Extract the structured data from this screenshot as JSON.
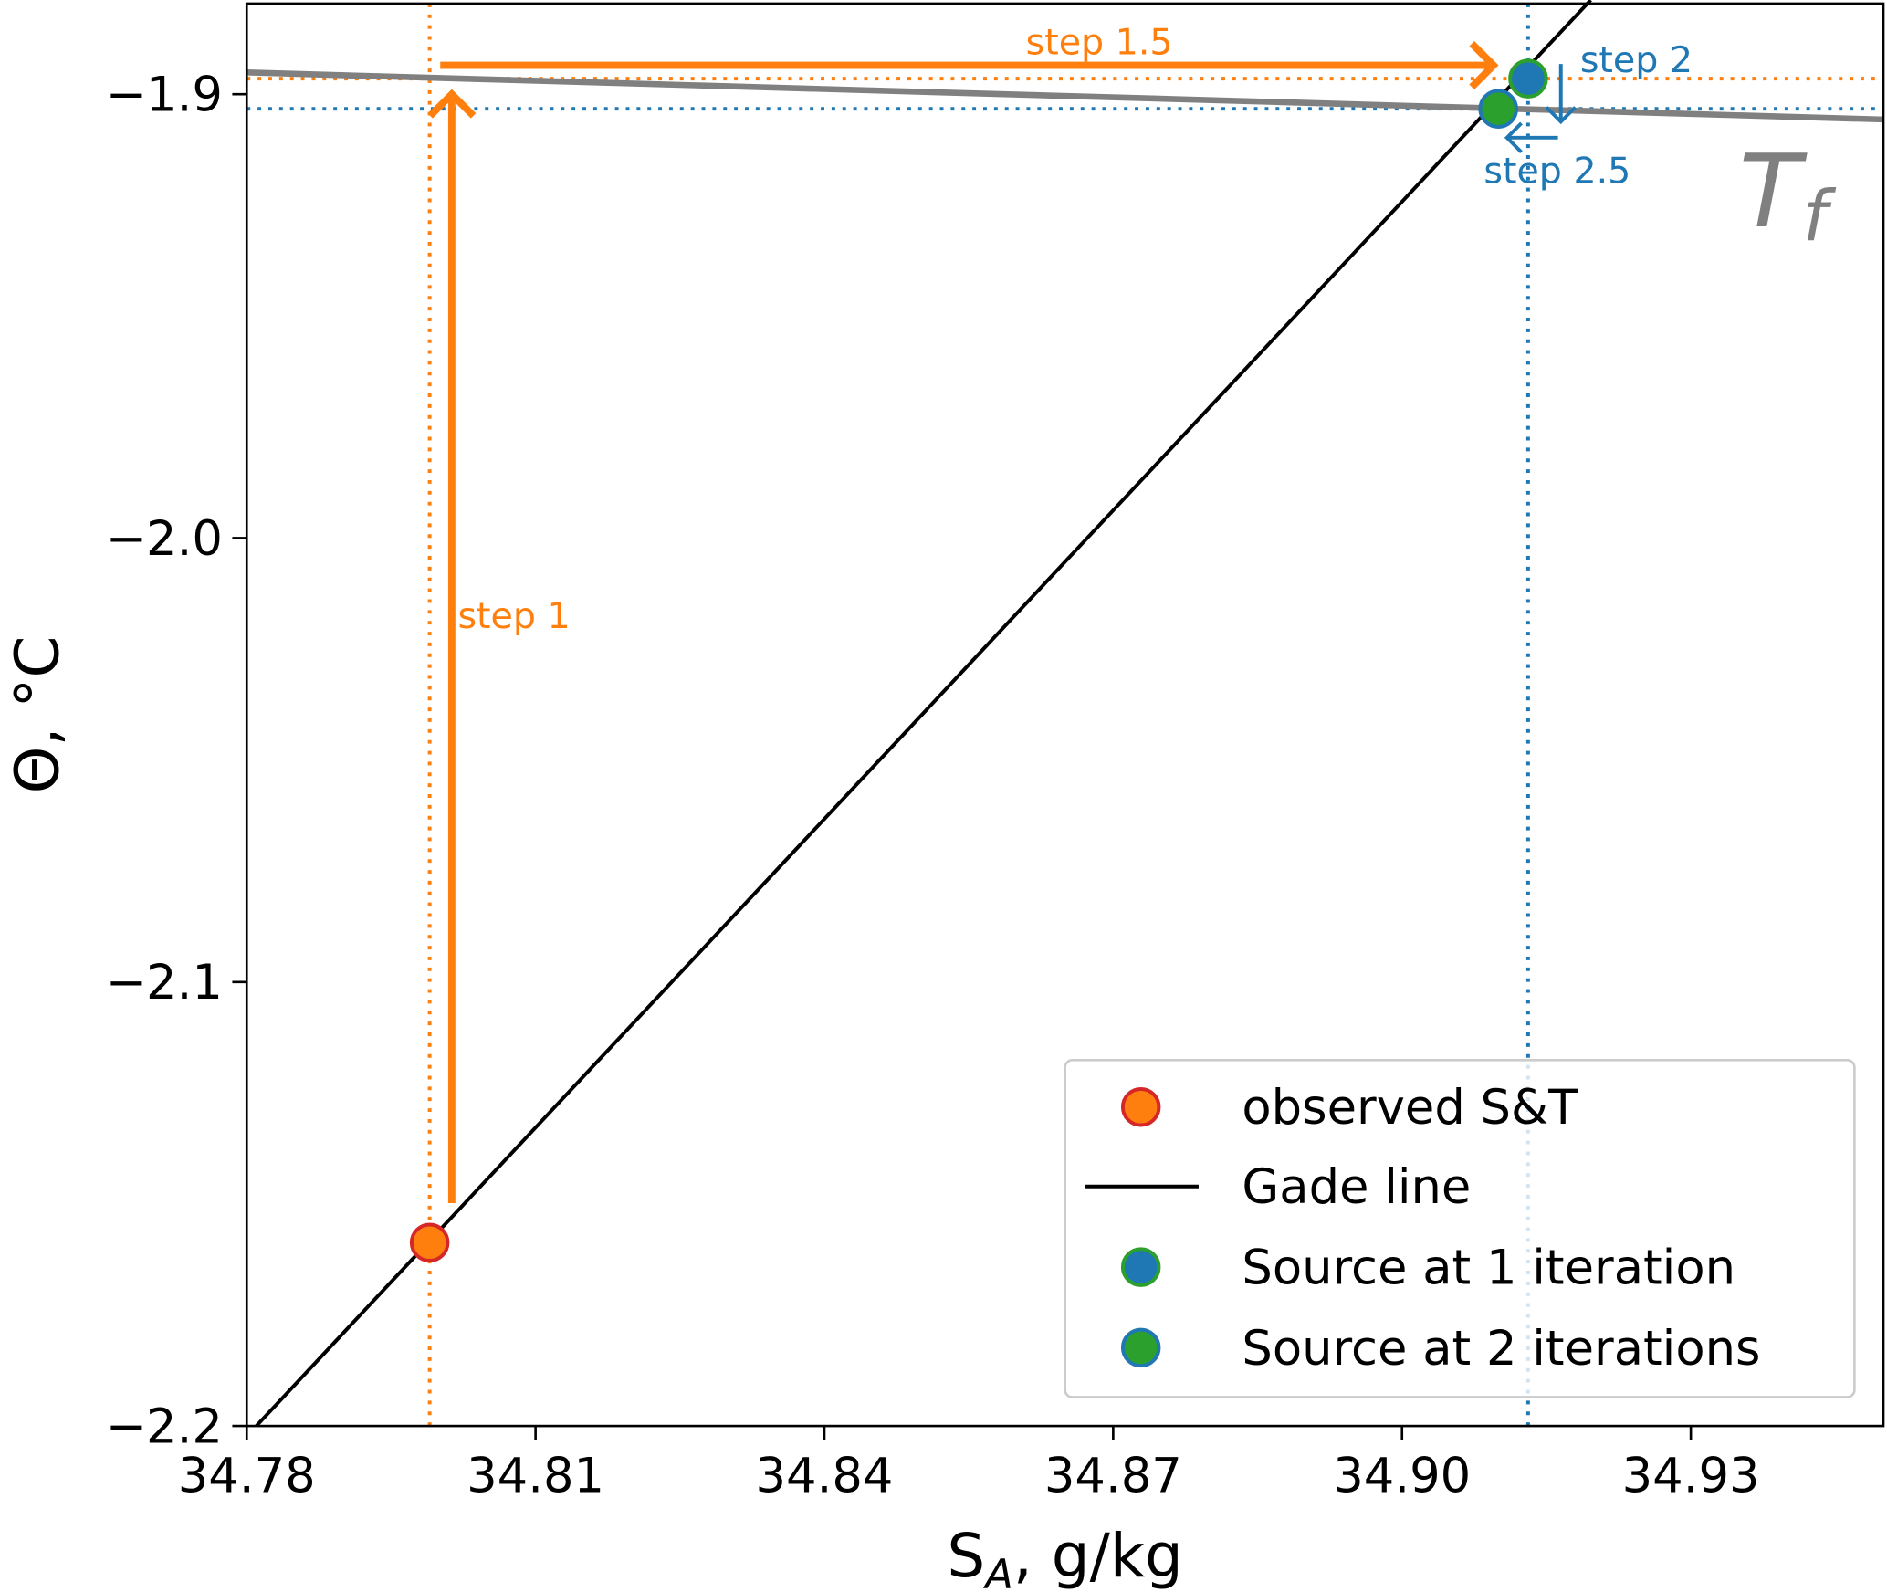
{
  "chart_data": {
    "type": "line",
    "title": "",
    "xlabel": "S",
    "xlabel_sub": "A",
    "xlabel_suffix": ", g/kg",
    "ylabel": "Θ, °C",
    "xlim": [
      34.78,
      34.95
    ],
    "ylim": [
      -2.2,
      -1.8796
    ],
    "xticks": [
      34.78,
      34.81,
      34.84,
      34.87,
      34.9,
      34.93
    ],
    "xtick_labels": [
      "34.78",
      "34.81",
      "34.84",
      "34.87",
      "34.90",
      "34.93"
    ],
    "yticks": [
      -1.9,
      -2.0,
      -2.1,
      -2.2
    ],
    "ytick_labels": [
      "−1.9",
      "−2.0",
      "−2.1",
      "−2.2"
    ],
    "grid": false,
    "legend_position": "lower-right",
    "colors": {
      "orange": "#ff7f0e",
      "blue": "#1f77b4",
      "green": "#2ca02c",
      "red": "#d62728",
      "gray": "#808080",
      "black": "#000000"
    },
    "series": [
      {
        "name": "Gade line",
        "kind": "line",
        "color": "#000000",
        "x": [
          34.781,
          34.9196
        ],
        "y": [
          -2.2,
          -1.8788
        ]
      },
      {
        "name": "Tf",
        "kind": "line",
        "color": "#808080",
        "x": [
          34.78,
          34.95
        ],
        "y": [
          -1.8951,
          -1.9057
        ]
      },
      {
        "name": "observed S&T",
        "kind": "point",
        "fill": "#ff7f0e",
        "edge": "#d62728",
        "x": [
          34.799
        ],
        "y": [
          -2.1587
        ]
      },
      {
        "name": "Source at 1 iteration",
        "kind": "point",
        "fill": "#1f77b4",
        "edge": "#2ca02c",
        "x": [
          34.9131
        ],
        "y": [
          -1.8965
        ]
      },
      {
        "name": "Source at 2 iterations",
        "kind": "point",
        "fill": "#2ca02c",
        "edge": "#1f77b4",
        "x": [
          34.91
        ],
        "y": [
          -1.9033
        ]
      }
    ],
    "guides": [
      {
        "orient": "v",
        "value": 34.799,
        "color": "#ff7f0e"
      },
      {
        "orient": "h",
        "value": -1.8965,
        "color": "#ff7f0e"
      },
      {
        "orient": "v",
        "value": 34.9131,
        "color": "#1f77b4"
      },
      {
        "orient": "h",
        "value": -1.9033,
        "color": "#1f77b4"
      }
    ],
    "arrows": [
      {
        "label": "step 1",
        "color": "#ff7f0e",
        "from": [
          34.8013,
          -2.1498
        ],
        "to": [
          34.8013,
          -1.9
        ],
        "width": "thick"
      },
      {
        "label": "step 1.5",
        "color": "#ff7f0e",
        "from": [
          34.8001,
          -1.8935
        ],
        "to": [
          34.9095,
          -1.8935
        ],
        "width": "thick"
      },
      {
        "label": "step 2",
        "color": "#1f77b4",
        "from": [
          34.9165,
          -1.8932
        ],
        "to": [
          34.9165,
          -1.9062
        ],
        "width": "thin"
      },
      {
        "label": "step 2.5",
        "color": "#1f77b4",
        "from": [
          34.9162,
          -1.9098
        ],
        "to": [
          34.9109,
          -1.9098
        ],
        "width": "thin"
      }
    ],
    "annotations": [
      {
        "text": "T",
        "sub": "f"
      }
    ],
    "legend": [
      "observed S&T",
      "Gade line",
      "Source at 1 iteration",
      "Source at 2 iterations"
    ]
  }
}
